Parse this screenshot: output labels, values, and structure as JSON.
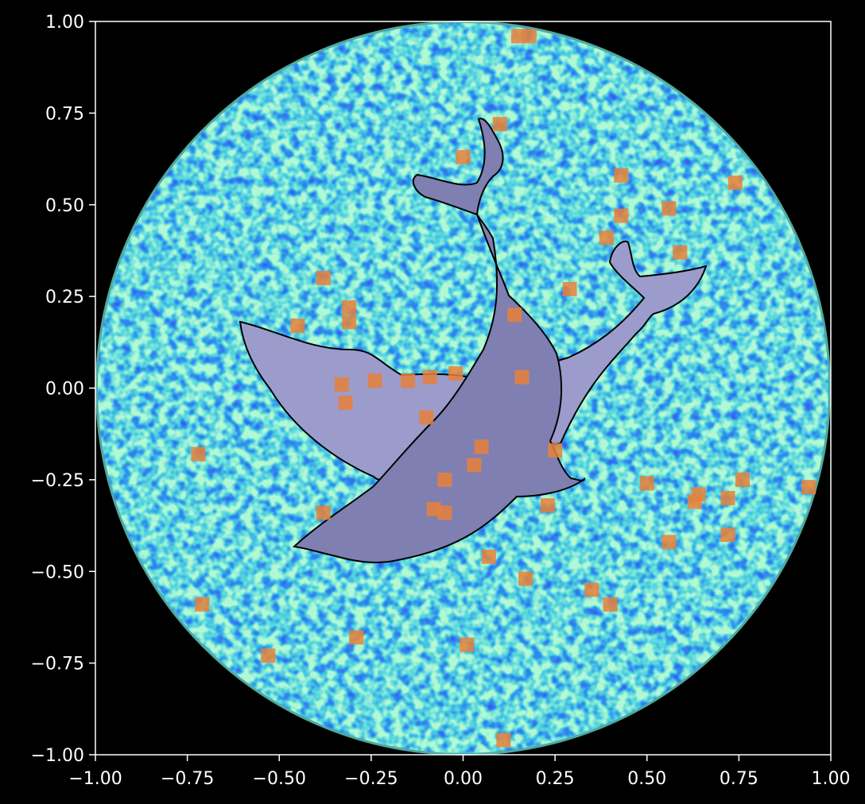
{
  "chart_data": {
    "type": "scatter",
    "title": "",
    "xlabel": "",
    "ylabel": "",
    "xlim": [
      -1.0,
      1.0
    ],
    "ylim": [
      -1.0,
      1.0
    ],
    "xticks": [
      "−1.00",
      "−0.75",
      "−0.50",
      "−0.25",
      "0.00",
      "0.25",
      "0.50",
      "0.75",
      "1.00"
    ],
    "yticks": [
      "1.00",
      "0.75",
      "0.50",
      "0.25",
      "0.00",
      "−0.25",
      "−0.50",
      "−0.75",
      "−1.00"
    ],
    "grid": false,
    "background_colors": {
      "figure": "#000000",
      "noise_low": "#0a1fe0",
      "noise_high": "#6ef0a8",
      "disk_edge": "#4fa8a0"
    },
    "shapes": [
      {
        "name": "dolphin-back",
        "fill": "#9c9ccc",
        "stroke": "#000000"
      },
      {
        "name": "dolphin-front",
        "fill": "#7f7fb2",
        "stroke": "#000000"
      }
    ],
    "series": [
      {
        "marker": "square",
        "color": "#e8803a",
        "points": [
          [
            0.15,
            0.96
          ],
          [
            0.18,
            0.96
          ],
          [
            0.1,
            0.72
          ],
          [
            0.0,
            0.63
          ],
          [
            0.43,
            0.58
          ],
          [
            0.74,
            0.56
          ],
          [
            0.56,
            0.49
          ],
          [
            0.43,
            0.47
          ],
          [
            0.39,
            0.41
          ],
          [
            0.59,
            0.37
          ],
          [
            0.29,
            0.27
          ],
          [
            -0.38,
            0.3
          ],
          [
            -0.31,
            0.22
          ],
          [
            -0.31,
            0.18
          ],
          [
            -0.45,
            0.17
          ],
          [
            0.14,
            0.2
          ],
          [
            -0.33,
            0.01
          ],
          [
            -0.24,
            0.02
          ],
          [
            -0.15,
            0.02
          ],
          [
            -0.09,
            0.03
          ],
          [
            -0.02,
            0.04
          ],
          [
            0.16,
            0.03
          ],
          [
            -0.32,
            -0.04
          ],
          [
            -0.1,
            -0.08
          ],
          [
            0.05,
            -0.16
          ],
          [
            0.25,
            -0.17
          ],
          [
            0.03,
            -0.21
          ],
          [
            -0.72,
            -0.18
          ],
          [
            -0.05,
            -0.25
          ],
          [
            0.5,
            -0.26
          ],
          [
            0.76,
            -0.25
          ],
          [
            0.94,
            -0.27
          ],
          [
            0.64,
            -0.29
          ],
          [
            0.63,
            -0.31
          ],
          [
            0.72,
            -0.3
          ],
          [
            0.23,
            -0.32
          ],
          [
            -0.08,
            -0.33
          ],
          [
            -0.05,
            -0.34
          ],
          [
            -0.38,
            -0.34
          ],
          [
            0.72,
            -0.4
          ],
          [
            0.56,
            -0.42
          ],
          [
            0.07,
            -0.46
          ],
          [
            0.17,
            -0.52
          ],
          [
            0.35,
            -0.55
          ],
          [
            0.4,
            -0.59
          ],
          [
            -0.71,
            -0.59
          ],
          [
            -0.29,
            -0.68
          ],
          [
            0.01,
            -0.7
          ],
          [
            -0.53,
            -0.73
          ],
          [
            0.11,
            -0.96
          ]
        ]
      }
    ]
  }
}
